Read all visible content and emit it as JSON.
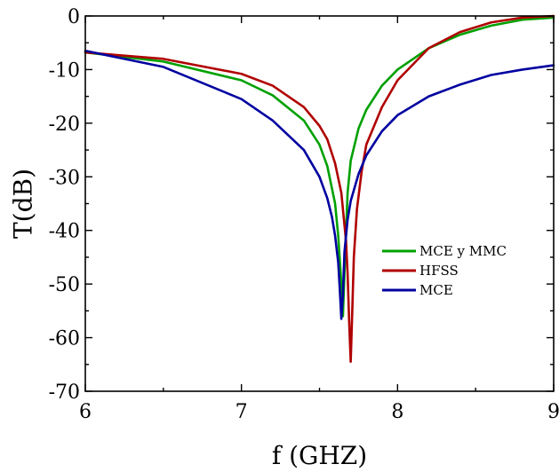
{
  "chart_data": {
    "type": "line",
    "title": "",
    "xlabel": "f (GHZ)",
    "ylabel": "T(dB)",
    "xlim": [
      6,
      9
    ],
    "ylim": [
      -70,
      0
    ],
    "xticks": [
      6,
      7,
      8,
      9
    ],
    "yticks": [
      0,
      -10,
      -20,
      -30,
      -40,
      -50,
      -60,
      -70
    ],
    "x_tick_labels": [
      "6",
      "7",
      "8",
      "9"
    ],
    "y_tick_labels": [
      "0",
      "-10",
      "-20",
      "-30",
      "-40",
      "-50",
      "-60",
      "-70"
    ],
    "grid": false,
    "legend_position": "right",
    "series": [
      {
        "name": "MCE y MMC",
        "color": "#00a000",
        "x": [
          6.0,
          6.5,
          7.0,
          7.2,
          7.4,
          7.5,
          7.55,
          7.6,
          7.62,
          7.64,
          7.65,
          7.66,
          7.68,
          7.7,
          7.75,
          7.8,
          7.9,
          8.0,
          8.2,
          8.4,
          8.6,
          8.8,
          9.0
        ],
        "y": [
          -6.8,
          -8.5,
          -12.0,
          -14.8,
          -19.5,
          -24.0,
          -28.0,
          -35.0,
          -41.0,
          -50.0,
          -56.0,
          -48.0,
          -33.0,
          -27.0,
          -21.0,
          -17.5,
          -13.0,
          -10.0,
          -6.0,
          -3.5,
          -1.8,
          -0.7,
          -0.3
        ]
      },
      {
        "name": "HFSS",
        "color": "#b00000",
        "x": [
          6.0,
          6.5,
          7.0,
          7.2,
          7.4,
          7.5,
          7.55,
          7.6,
          7.64,
          7.67,
          7.68,
          7.69,
          7.7,
          7.71,
          7.72,
          7.74,
          7.77,
          7.8,
          7.9,
          8.0,
          8.2,
          8.4,
          8.6,
          8.8,
          9.0
        ],
        "y": [
          -6.8,
          -8.0,
          -10.8,
          -13.0,
          -17.0,
          -20.5,
          -23.0,
          -27.5,
          -33.0,
          -42.0,
          -48.0,
          -57.0,
          -64.5,
          -55.0,
          -45.0,
          -36.0,
          -29.0,
          -24.0,
          -17.0,
          -12.0,
          -6.0,
          -3.0,
          -1.2,
          -0.3,
          0.0
        ]
      },
      {
        "name": "MCE",
        "color": "#0000a0",
        "x": [
          6.0,
          6.5,
          7.0,
          7.2,
          7.4,
          7.5,
          7.55,
          7.58,
          7.6,
          7.62,
          7.63,
          7.64,
          7.65,
          7.66,
          7.68,
          7.7,
          7.75,
          7.8,
          7.9,
          8.0,
          8.2,
          8.4,
          8.6,
          8.8,
          9.0
        ],
        "y": [
          -6.5,
          -9.5,
          -15.5,
          -19.5,
          -25.0,
          -30.0,
          -34.0,
          -37.5,
          -41.0,
          -46.0,
          -51.0,
          -56.5,
          -52.0,
          -44.0,
          -38.0,
          -34.5,
          -29.5,
          -26.0,
          -21.5,
          -18.5,
          -15.0,
          -12.8,
          -11.0,
          -10.0,
          -9.2
        ]
      }
    ]
  }
}
